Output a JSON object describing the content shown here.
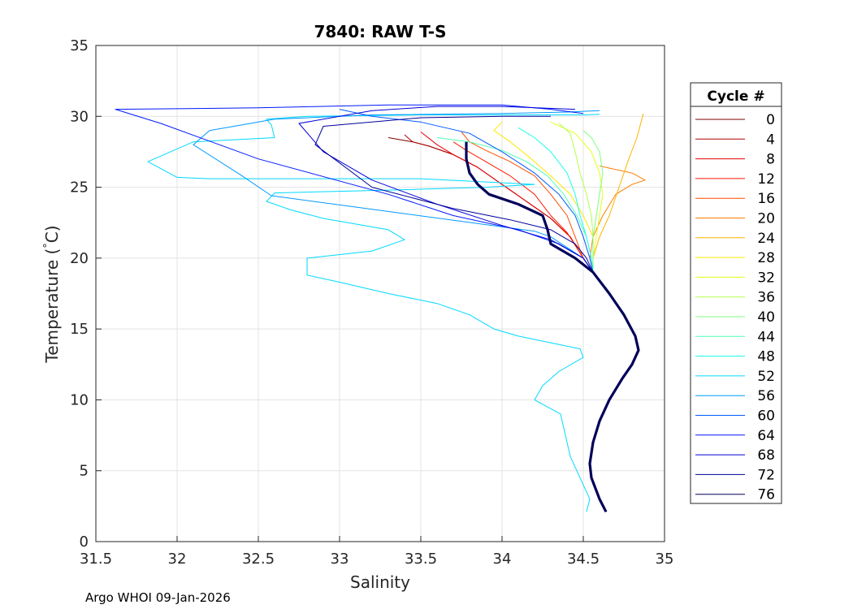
{
  "chart_data": {
    "type": "line",
    "title": "7840: RAW T-S",
    "xlabel": "Salinity",
    "ylabel": "Temperature (°C)",
    "ylabel_parts": {
      "main": "Temperature (",
      "degree": "°",
      "unit": "C)"
    },
    "xlim": [
      31.5,
      35
    ],
    "ylim": [
      0,
      35
    ],
    "x_ticks": [
      31.5,
      32,
      32.5,
      33,
      33.5,
      34,
      34.5,
      35
    ],
    "x_tick_labels": [
      "31.5",
      "32",
      "32.5",
      "33",
      "33.5",
      "34",
      "34.5",
      "35"
    ],
    "y_ticks": [
      0,
      5,
      10,
      15,
      20,
      25,
      30,
      35
    ],
    "y_tick_labels": [
      "0",
      "5",
      "10",
      "15",
      "20",
      "25",
      "30",
      "35"
    ],
    "grid": true,
    "legend_title": "Cycle #",
    "legend_placement": "outside-right",
    "footer": "Argo WHOI 09-Jan-2026",
    "deep_profile": [
      [
        34.64,
        2.1
      ],
      [
        34.6,
        3.0
      ],
      [
        34.55,
        4.5
      ],
      [
        34.54,
        5.5
      ],
      [
        34.56,
        7.0
      ],
      [
        34.6,
        8.5
      ],
      [
        34.66,
        10.0
      ],
      [
        34.74,
        11.5
      ],
      [
        34.8,
        12.5
      ],
      [
        34.84,
        13.5
      ],
      [
        34.82,
        14.5
      ],
      [
        34.75,
        16.0
      ],
      [
        34.66,
        17.5
      ],
      [
        34.56,
        19.0
      ]
    ],
    "series": [
      {
        "name": "0",
        "color": "#7f0000",
        "upper": [
          [
            34.56,
            19.0
          ],
          [
            34.5,
            20.0
          ],
          [
            34.42,
            21.5
          ],
          [
            34.3,
            22.8
          ],
          [
            34.15,
            24.0
          ],
          [
            34.0,
            25.2
          ],
          [
            33.85,
            26.4
          ],
          [
            33.7,
            27.3
          ],
          [
            33.55,
            27.9
          ],
          [
            33.45,
            28.2
          ],
          [
            33.3,
            28.5
          ]
        ]
      },
      {
        "name": "4",
        "color": "#b20000",
        "upper": [
          [
            34.56,
            19.0
          ],
          [
            34.5,
            20.0
          ],
          [
            34.42,
            21.5
          ],
          [
            34.3,
            22.8
          ],
          [
            34.15,
            24.0
          ],
          [
            34.0,
            25.2
          ],
          [
            33.85,
            26.4
          ],
          [
            33.7,
            27.3
          ],
          [
            33.55,
            27.9
          ],
          [
            33.45,
            28.2
          ],
          [
            33.4,
            28.7
          ]
        ]
      },
      {
        "name": "8",
        "color": "#e60000",
        "upper": [
          [
            34.56,
            19.0
          ],
          [
            34.5,
            20.0
          ],
          [
            34.42,
            21.5
          ],
          [
            34.3,
            22.8
          ],
          [
            34.15,
            24.0
          ],
          [
            34.0,
            25.2
          ],
          [
            33.85,
            26.4
          ],
          [
            33.7,
            27.3
          ],
          [
            33.6,
            28.0
          ],
          [
            33.5,
            28.9
          ]
        ]
      },
      {
        "name": "12",
        "color": "#ff1a00",
        "upper": [
          [
            34.56,
            19.0
          ],
          [
            34.5,
            20.0
          ],
          [
            34.4,
            21.8
          ],
          [
            34.3,
            23.0
          ],
          [
            34.2,
            24.5
          ],
          [
            34.05,
            25.8
          ],
          [
            33.9,
            26.8
          ],
          [
            33.78,
            27.6
          ],
          [
            33.7,
            28.2
          ]
        ]
      },
      {
        "name": "16",
        "color": "#ff4d00",
        "upper": [
          [
            34.56,
            19.0
          ],
          [
            34.5,
            20.0
          ],
          [
            34.45,
            21.5
          ],
          [
            34.4,
            23.0
          ],
          [
            34.3,
            24.5
          ],
          [
            34.2,
            25.8
          ],
          [
            34.05,
            26.8
          ],
          [
            33.9,
            27.6
          ],
          [
            33.8,
            28.2
          ],
          [
            33.75,
            28.9
          ]
        ]
      },
      {
        "name": "20",
        "color": "#ff8000",
        "upper": [
          [
            34.56,
            19.0
          ],
          [
            34.54,
            20.0
          ],
          [
            34.56,
            21.5
          ],
          [
            34.62,
            23.0
          ],
          [
            34.7,
            24.5
          ],
          [
            34.8,
            25.2
          ],
          [
            34.88,
            25.5
          ],
          [
            34.8,
            26.0
          ],
          [
            34.6,
            26.5
          ]
        ]
      },
      {
        "name": "24",
        "color": "#ffb300",
        "upper": [
          [
            34.56,
            19.0
          ],
          [
            34.56,
            20.0
          ],
          [
            34.6,
            21.5
          ],
          [
            34.66,
            23.0
          ],
          [
            34.72,
            25.0
          ],
          [
            34.78,
            27.0
          ],
          [
            34.83,
            28.5
          ],
          [
            34.87,
            30.2
          ]
        ]
      },
      {
        "name": "28",
        "color": "#ffe600",
        "upper": [
          [
            34.56,
            19.0
          ],
          [
            34.56,
            20.0
          ],
          [
            34.56,
            21.5
          ],
          [
            34.5,
            23.0
          ],
          [
            34.42,
            24.5
          ],
          [
            34.3,
            25.8
          ],
          [
            34.18,
            27.0
          ],
          [
            34.05,
            28.2
          ],
          [
            33.95,
            29.0
          ],
          [
            34.0,
            29.6
          ]
        ]
      },
      {
        "name": "32",
        "color": "#e6ff1a",
        "upper": [
          [
            34.56,
            19.0
          ],
          [
            34.56,
            20.0
          ],
          [
            34.58,
            21.5
          ],
          [
            34.6,
            23.0
          ],
          [
            34.62,
            24.5
          ],
          [
            34.6,
            26.0
          ],
          [
            34.55,
            27.5
          ],
          [
            34.45,
            28.8
          ],
          [
            34.3,
            29.6
          ]
        ]
      },
      {
        "name": "36",
        "color": "#b3ff4d",
        "upper": [
          [
            34.56,
            19.0
          ],
          [
            34.56,
            20.0
          ],
          [
            34.56,
            21.5
          ],
          [
            34.55,
            23.0
          ],
          [
            34.52,
            24.5
          ],
          [
            34.48,
            26.0
          ],
          [
            34.45,
            27.5
          ],
          [
            34.42,
            28.8
          ],
          [
            34.35,
            29.5
          ]
        ]
      },
      {
        "name": "40",
        "color": "#80ff80",
        "upper": [
          [
            34.56,
            19.0
          ],
          [
            34.56,
            20.0
          ],
          [
            34.56,
            21.5
          ],
          [
            34.58,
            23.0
          ],
          [
            34.6,
            24.5
          ],
          [
            34.62,
            26.0
          ],
          [
            34.6,
            27.5
          ],
          [
            34.55,
            28.5
          ],
          [
            34.5,
            29.0
          ]
        ]
      },
      {
        "name": "44",
        "color": "#4dffb3",
        "upper": [
          [
            34.56,
            19.0
          ],
          [
            34.55,
            20.0
          ],
          [
            34.52,
            21.5
          ],
          [
            34.46,
            23.0
          ],
          [
            34.38,
            24.5
          ],
          [
            34.28,
            25.8
          ],
          [
            34.15,
            26.8
          ],
          [
            34.0,
            27.6
          ],
          [
            33.8,
            28.2
          ],
          [
            33.6,
            28.5
          ]
        ]
      },
      {
        "name": "48",
        "color": "#1affe6",
        "upper": [
          [
            34.56,
            19.0
          ],
          [
            34.55,
            20.0
          ],
          [
            34.52,
            21.5
          ],
          [
            34.48,
            23.0
          ],
          [
            34.45,
            24.5
          ],
          [
            34.4,
            26.0
          ],
          [
            34.3,
            27.5
          ],
          [
            34.2,
            28.5
          ],
          [
            34.1,
            29.2
          ]
        ]
      },
      {
        "name": "52",
        "color": "#00d9ff",
        "upper": [
          [
            34.52,
            2.1
          ],
          [
            34.54,
            3.0
          ],
          [
            34.5,
            4.0
          ],
          [
            34.46,
            5.0
          ],
          [
            34.42,
            6.0
          ],
          [
            34.4,
            7.0
          ],
          [
            34.38,
            8.0
          ],
          [
            34.36,
            9.0
          ],
          [
            34.2,
            10.0
          ],
          [
            34.25,
            11.0
          ],
          [
            34.35,
            12.0
          ],
          [
            34.5,
            13.0
          ],
          [
            34.48,
            13.6
          ],
          [
            34.1,
            14.5
          ],
          [
            33.95,
            15.0
          ],
          [
            33.8,
            16.0
          ],
          [
            33.6,
            16.8
          ],
          [
            33.3,
            17.5
          ],
          [
            33.0,
            18.3
          ],
          [
            32.8,
            18.8
          ],
          [
            32.8,
            20.0
          ],
          [
            33.2,
            20.5
          ],
          [
            33.4,
            21.3
          ],
          [
            33.3,
            22.0
          ],
          [
            32.9,
            22.8
          ],
          [
            32.7,
            23.4
          ],
          [
            32.55,
            24.0
          ],
          [
            32.6,
            24.6
          ],
          [
            33.3,
            24.8
          ],
          [
            33.9,
            25.0
          ],
          [
            34.2,
            25.2
          ],
          [
            33.5,
            25.6
          ],
          [
            32.7,
            25.6
          ],
          [
            32.2,
            25.6
          ],
          [
            32.0,
            25.7
          ],
          [
            31.82,
            26.8
          ],
          [
            32.0,
            27.7
          ],
          [
            32.1,
            28.2
          ],
          [
            32.6,
            28.5
          ],
          [
            32.58,
            29.4
          ],
          [
            32.55,
            29.8
          ],
          [
            32.8,
            30.0
          ],
          [
            33.5,
            30.1
          ],
          [
            34.5,
            30.1
          ],
          [
            34.6,
            30.15
          ]
        ]
      },
      {
        "name": "56",
        "color": "#0099ff",
        "upper": [
          [
            34.56,
            19.0
          ],
          [
            34.5,
            20.0
          ],
          [
            34.3,
            21.5
          ],
          [
            34.2,
            21.9
          ],
          [
            32.58,
            24.4
          ],
          [
            32.4,
            25.8
          ],
          [
            32.1,
            28.0
          ],
          [
            32.2,
            29.0
          ],
          [
            32.6,
            29.8
          ],
          [
            33.2,
            30.1
          ],
          [
            34.0,
            30.2
          ],
          [
            34.4,
            30.3
          ],
          [
            34.6,
            30.4
          ]
        ]
      },
      {
        "name": "60",
        "color": "#0059ff",
        "upper": [
          [
            34.56,
            19.0
          ],
          [
            34.54,
            20.0
          ],
          [
            34.5,
            21.5
          ],
          [
            34.45,
            23.0
          ],
          [
            34.35,
            24.5
          ],
          [
            34.2,
            26.0
          ],
          [
            34.0,
            27.5
          ],
          [
            33.8,
            28.8
          ],
          [
            33.5,
            29.6
          ],
          [
            33.2,
            30.0
          ],
          [
            33.0,
            30.5
          ]
        ]
      },
      {
        "name": "64",
        "color": "#0019ff",
        "upper": [
          [
            34.56,
            19.0
          ],
          [
            34.5,
            20.0
          ],
          [
            34.35,
            21.0
          ],
          [
            34.1,
            22.0
          ],
          [
            33.7,
            23.0
          ],
          [
            33.3,
            24.5
          ],
          [
            32.5,
            27.0
          ],
          [
            31.9,
            29.5
          ],
          [
            31.62,
            30.5
          ],
          [
            32.5,
            30.6
          ],
          [
            33.3,
            30.8
          ],
          [
            34.0,
            30.8
          ],
          [
            34.3,
            30.5
          ],
          [
            34.5,
            30.2
          ]
        ]
      },
      {
        "name": "68",
        "color": "#0000d9",
        "upper": [
          [
            34.56,
            19.0
          ],
          [
            34.5,
            20.0
          ],
          [
            34.3,
            21.3
          ],
          [
            34.0,
            22.3
          ],
          [
            33.6,
            23.8
          ],
          [
            33.2,
            25.5
          ],
          [
            32.9,
            27.5
          ],
          [
            32.75,
            29.5
          ],
          [
            33.2,
            30.4
          ],
          [
            33.6,
            30.7
          ],
          [
            34.0,
            30.7
          ],
          [
            34.45,
            30.5
          ]
        ]
      },
      {
        "name": "72",
        "color": "#000099",
        "upper": [
          [
            34.56,
            19.0
          ],
          [
            34.52,
            20.0
          ],
          [
            34.45,
            21.0
          ],
          [
            34.3,
            22.0
          ],
          [
            34.05,
            22.7
          ],
          [
            33.7,
            23.5
          ],
          [
            33.2,
            25.0
          ],
          [
            32.85,
            28.0
          ],
          [
            32.9,
            29.3
          ],
          [
            33.5,
            29.9
          ],
          [
            34.0,
            30.0
          ],
          [
            34.3,
            30.0
          ]
        ]
      },
      {
        "name": "76",
        "color": "#000059",
        "upper": [
          [
            34.56,
            19.0
          ],
          [
            34.45,
            20.0
          ],
          [
            34.3,
            21.0
          ],
          [
            34.28,
            22.0
          ],
          [
            34.25,
            23.0
          ],
          [
            34.1,
            23.8
          ],
          [
            33.92,
            24.5
          ],
          [
            33.85,
            25.2
          ],
          [
            33.8,
            26.0
          ],
          [
            33.78,
            27.0
          ],
          [
            33.78,
            28.2
          ]
        ]
      }
    ]
  }
}
